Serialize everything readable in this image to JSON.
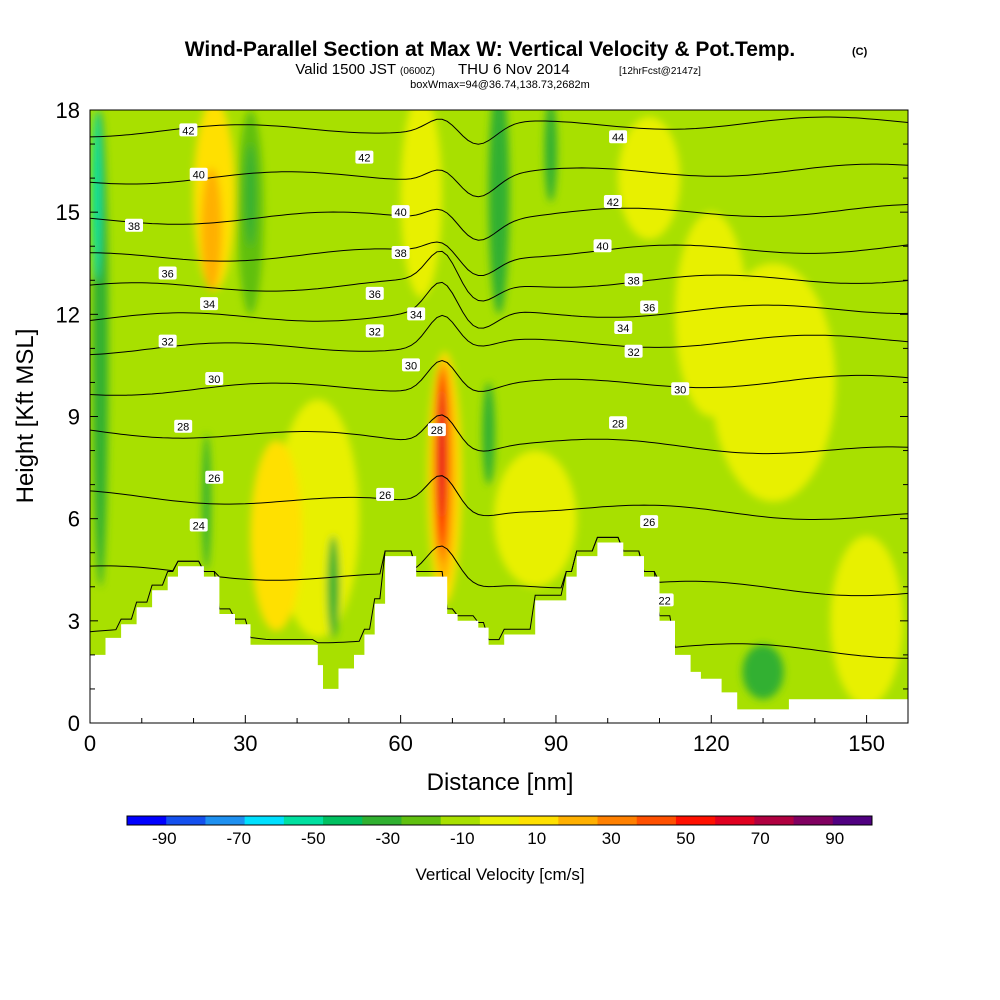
{
  "chart_data": {
    "type": "heatmap",
    "title": "Wind-Parallel Section at Max W: Vertical Velocity & Pot.Temp.",
    "title_tag": "(C)",
    "subtitle": {
      "prefix": "Valid 1500 JST",
      "utc": "(0600Z)",
      "date": "THU 6 Nov 2014",
      "forecast": "[12hrFcst@2147z]"
    },
    "box_info": "boxWmax=94@36.74,138.73,2682m",
    "xlabel": "Distance [nm]",
    "ylabel": "Height [Kft MSL]",
    "xlim": [
      0,
      158
    ],
    "ylim": [
      0,
      18
    ],
    "x_ticks": [
      "0",
      "30",
      "60",
      "90",
      "120",
      "150"
    ],
    "y_ticks": [
      "0",
      "3",
      "6",
      "9",
      "12",
      "15",
      "18"
    ],
    "colorbar": {
      "label": "Vertical Velocity [cm/s]",
      "tick_labels": [
        "-90",
        "-70",
        "-50",
        "-30",
        "-10",
        "10",
        "30",
        "50",
        "70",
        "90"
      ],
      "colors": [
        "#0000ff",
        "#1450ee",
        "#1e90f0",
        "#00e0ff",
        "#00e0a0",
        "#00c060",
        "#30b030",
        "#60c010",
        "#a8e000",
        "#e8f000",
        "#ffe000",
        "#ffb000",
        "#ff8000",
        "#ff5000",
        "#ff1000",
        "#e00020",
        "#b00040",
        "#800060",
        "#500080"
      ]
    },
    "terrain": [
      [
        0,
        2
      ],
      [
        3,
        2
      ],
      [
        3,
        2.5
      ],
      [
        6,
        2.5
      ],
      [
        6,
        2.9
      ],
      [
        9,
        2.9
      ],
      [
        9,
        3.4
      ],
      [
        12,
        3.4
      ],
      [
        12,
        3.9
      ],
      [
        15,
        3.9
      ],
      [
        15,
        4.3
      ],
      [
        17,
        4.3
      ],
      [
        17,
        4.6
      ],
      [
        22,
        4.6
      ],
      [
        22,
        4.3
      ],
      [
        25,
        4.3
      ],
      [
        25,
        3.2
      ],
      [
        28,
        3.2
      ],
      [
        28,
        2.9
      ],
      [
        31,
        2.9
      ],
      [
        31,
        2.3
      ],
      [
        44,
        2.3
      ],
      [
        44,
        1.7
      ],
      [
        45,
        1.7
      ],
      [
        45,
        1.0
      ],
      [
        48,
        1.0
      ],
      [
        48,
        1.6
      ],
      [
        51,
        1.6
      ],
      [
        51,
        2.0
      ],
      [
        53,
        2.0
      ],
      [
        53,
        2.6
      ],
      [
        55,
        2.6
      ],
      [
        55,
        3.5
      ],
      [
        57,
        3.5
      ],
      [
        57,
        4.9
      ],
      [
        63,
        4.9
      ],
      [
        63,
        4.3
      ],
      [
        69,
        4.3
      ],
      [
        69,
        3.2
      ],
      [
        71,
        3.2
      ],
      [
        71,
        3.0
      ],
      [
        75,
        3.0
      ],
      [
        75,
        2.8
      ],
      [
        77,
        2.8
      ],
      [
        77,
        2.3
      ],
      [
        80,
        2.3
      ],
      [
        80,
        2.6
      ],
      [
        86,
        2.6
      ],
      [
        86,
        3.6
      ],
      [
        92,
        3.6
      ],
      [
        92,
        4.3
      ],
      [
        94,
        4.3
      ],
      [
        94,
        4.9
      ],
      [
        98,
        4.9
      ],
      [
        98,
        5.3
      ],
      [
        103,
        5.3
      ],
      [
        103,
        4.9
      ],
      [
        107,
        4.9
      ],
      [
        107,
        4.3
      ],
      [
        110,
        4.3
      ],
      [
        110,
        3.0
      ],
      [
        113,
        3.0
      ],
      [
        113,
        2.0
      ],
      [
        116,
        2.0
      ],
      [
        116,
        1.5
      ],
      [
        118,
        1.5
      ],
      [
        118,
        1.3
      ],
      [
        122,
        1.3
      ],
      [
        122,
        0.9
      ],
      [
        125,
        0.9
      ],
      [
        125,
        0.4
      ],
      [
        135,
        0.4
      ],
      [
        135,
        0.7
      ],
      [
        158,
        0.7
      ]
    ],
    "vertical_velocity_areas": [
      {
        "color": "#ffe000",
        "x": [
          18,
          28
        ],
        "y": [
          11,
          18
        ],
        "cx": 24,
        "cy": 15.5,
        "rx": 4,
        "ry": 2.8
      },
      {
        "color": "#ffb000",
        "x": [
          21,
          27
        ],
        "y": [
          13,
          16.5
        ],
        "cx": 23.5,
        "cy": 14.5,
        "rx": 2,
        "ry": 1.8
      },
      {
        "color": "#60c010",
        "x": [
          27,
          35
        ],
        "y": [
          12,
          18
        ],
        "cx": 31,
        "cy": 15,
        "rx": 2.5,
        "ry": 3
      },
      {
        "color": "#30b030",
        "x": [
          30,
          33
        ],
        "y": [
          14,
          17
        ],
        "cx": 31,
        "cy": 15.5,
        "rx": 1,
        "ry": 1.5
      },
      {
        "color": "#30b030",
        "x": [
          0,
          4
        ],
        "y": [
          4,
          18
        ],
        "cx": 2,
        "cy": 11,
        "rx": 1.5,
        "ry": 7
      },
      {
        "color": "#00e0a0",
        "x": [
          0,
          3
        ],
        "y": [
          13,
          18
        ],
        "cx": 1.3,
        "cy": 15.5,
        "rx": 0.9,
        "ry": 2.5
      },
      {
        "color": "#e8f000",
        "x": [
          36,
          52
        ],
        "y": [
          2.5,
          9.5
        ],
        "cx": 44,
        "cy": 6,
        "rx": 8,
        "ry": 3.5
      },
      {
        "color": "#ffe000",
        "x": [
          28,
          44
        ],
        "y": [
          2.8,
          8.5
        ],
        "cx": 36,
        "cy": 5.5,
        "rx": 5,
        "ry": 2.8
      },
      {
        "color": "#e8f000",
        "x": [
          58,
          70
        ],
        "y": [
          11,
          18
        ],
        "cx": 64,
        "cy": 15.5,
        "rx": 4,
        "ry": 3
      },
      {
        "color": "#30b030",
        "x": [
          76,
          82
        ],
        "y": [
          12,
          18
        ],
        "cx": 79,
        "cy": 15.5,
        "rx": 2,
        "ry": 3.5
      },
      {
        "color": "#30b030",
        "x": [
          87,
          91
        ],
        "y": [
          15,
          18
        ],
        "cx": 89,
        "cy": 16.8,
        "rx": 1.2,
        "ry": 1.5
      },
      {
        "color": "#e8f000",
        "x": [
          113,
          128
        ],
        "y": [
          9,
          15
        ],
        "cx": 120,
        "cy": 12,
        "rx": 7,
        "ry": 3
      },
      {
        "color": "#e8f000",
        "x": [
          113,
          145
        ],
        "y": [
          6.5,
          13.5
        ],
        "cx": 132,
        "cy": 10,
        "rx": 12,
        "ry": 3.5
      },
      {
        "color": "#e8f000",
        "x": [
          99,
          115
        ],
        "y": [
          14.5,
          18
        ],
        "cx": 108,
        "cy": 16,
        "rx": 6,
        "ry": 1.8
      },
      {
        "color": "#e8f000",
        "x": [
          143,
          158
        ],
        "y": [
          0.8,
          6
        ],
        "cx": 150,
        "cy": 3,
        "rx": 7,
        "ry": 2.5
      },
      {
        "color": "#e8f000",
        "x": [
          77,
          96
        ],
        "y": [
          3.5,
          8
        ],
        "cx": 86,
        "cy": 6,
        "rx": 8,
        "ry": 2
      },
      {
        "color": "#30b030",
        "x": [
          21,
          24
        ],
        "y": [
          4.5,
          8.5
        ],
        "cx": 22.5,
        "cy": 6.5,
        "rx": 0.8,
        "ry": 2
      },
      {
        "color": "#30b030",
        "x": [
          46,
          50
        ],
        "y": [
          2,
          6
        ],
        "cx": 47,
        "cy": 4,
        "rx": 1.2,
        "ry": 1.5
      },
      {
        "color": "#30b030",
        "x": [
          75,
          80
        ],
        "y": [
          7,
          10
        ],
        "cx": 77,
        "cy": 8.5,
        "rx": 1.2,
        "ry": 1.5
      },
      {
        "color": "#30b030",
        "x": [
          125,
          140
        ],
        "y": [
          0.5,
          2.5
        ],
        "cx": 130,
        "cy": 1.5,
        "rx": 4,
        "ry": 0.8
      },
      {
        "color": "#ffe000",
        "x": [
          64,
          74
        ],
        "y": [
          3.5,
          11
        ],
        "cx": 68.5,
        "cy": 7.2,
        "rx": 3.3,
        "ry": 3.7
      },
      {
        "color": "#ffb000",
        "x": [
          65,
          72
        ],
        "y": [
          4,
          10.7
        ],
        "cx": 68.3,
        "cy": 7.4,
        "rx": 2.3,
        "ry": 3.3
      },
      {
        "color": "#ff8000",
        "x": [
          66,
          71
        ],
        "y": [
          4.6,
          10.5
        ],
        "cx": 68.1,
        "cy": 7.6,
        "rx": 1.5,
        "ry": 2.9
      },
      {
        "color": "#ff1000",
        "x": [
          66,
          70
        ],
        "y": [
          5,
          10.3
        ],
        "cx": 67.9,
        "cy": 7.7,
        "rx": 1.0,
        "ry": 2.6
      },
      {
        "color": "#e00020",
        "x": [
          67,
          69
        ],
        "y": [
          6,
          9.8
        ],
        "cx": 67.9,
        "cy": 7.9,
        "rx": 0.55,
        "ry": 1.9
      }
    ],
    "theta_contours": {
      "levels": [
        22,
        24,
        26,
        28,
        30,
        32,
        34,
        36,
        38,
        40,
        42,
        44
      ],
      "labels": [
        {
          "text": "42",
          "x": 19,
          "y": 17.4
        },
        {
          "text": "40",
          "x": 21,
          "y": 16.1
        },
        {
          "text": "38",
          "x": 8.5,
          "y": 14.6
        },
        {
          "text": "36",
          "x": 15,
          "y": 13.2
        },
        {
          "text": "34",
          "x": 23,
          "y": 12.3
        },
        {
          "text": "32",
          "x": 15,
          "y": 11.2
        },
        {
          "text": "30",
          "x": 24,
          "y": 10.1
        },
        {
          "text": "28",
          "x": 18,
          "y": 8.7
        },
        {
          "text": "26",
          "x": 24,
          "y": 7.2
        },
        {
          "text": "24",
          "x": 21,
          "y": 5.8
        },
        {
          "text": "42",
          "x": 53,
          "y": 16.6
        },
        {
          "text": "40",
          "x": 60,
          "y": 15.0
        },
        {
          "text": "38",
          "x": 60,
          "y": 13.8
        },
        {
          "text": "36",
          "x": 55,
          "y": 12.6
        },
        {
          "text": "34",
          "x": 63,
          "y": 12.0
        },
        {
          "text": "32",
          "x": 55,
          "y": 11.5
        },
        {
          "text": "30",
          "x": 62,
          "y": 10.5
        },
        {
          "text": "28",
          "x": 67,
          "y": 8.6
        },
        {
          "text": "26",
          "x": 57,
          "y": 6.7
        },
        {
          "text": "44",
          "x": 102,
          "y": 17.2
        },
        {
          "text": "42",
          "x": 101,
          "y": 15.3
        },
        {
          "text": "40",
          "x": 99,
          "y": 14.0
        },
        {
          "text": "38",
          "x": 105,
          "y": 13.0
        },
        {
          "text": "36",
          "x": 108,
          "y": 12.2
        },
        {
          "text": "34",
          "x": 103,
          "y": 11.6
        },
        {
          "text": "32",
          "x": 105,
          "y": 10.9
        },
        {
          "text": "30",
          "x": 114,
          "y": 9.8
        },
        {
          "text": "28",
          "x": 102,
          "y": 8.8
        },
        {
          "text": "26",
          "x": 108,
          "y": 5.9
        },
        {
          "text": "22",
          "x": 111,
          "y": 3.6
        }
      ]
    }
  }
}
